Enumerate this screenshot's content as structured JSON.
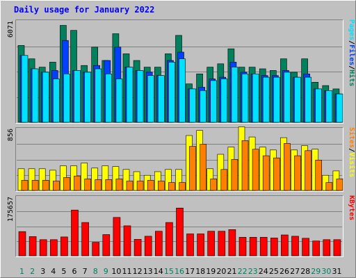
{
  "chart_data": {
    "type": "bar",
    "title": "Daily usage for January 2022",
    "categories": [
      "1",
      "2",
      "3",
      "4",
      "5",
      "6",
      "7",
      "8",
      "9",
      "10",
      "11",
      "12",
      "13",
      "14",
      "15",
      "16",
      "17",
      "18",
      "19",
      "20",
      "21",
      "22",
      "23",
      "24",
      "25",
      "26",
      "27",
      "28",
      "29",
      "30",
      "31"
    ],
    "weekend_days": [
      "1",
      "2",
      "8",
      "9",
      "15",
      "16",
      "22",
      "23",
      "29",
      "30"
    ],
    "panels": [
      {
        "name": "pages-files-hits",
        "max_label": "6071",
        "ymax": 6071,
        "legend": [
          "Pages",
          "/",
          "Files",
          "/",
          "Hits"
        ],
        "series": [
          {
            "name": "Hits",
            "color": "#00805c",
            "values": [
              4600,
              3800,
              3300,
              3600,
              5800,
              5500,
              3400,
              4500,
              3700,
              5300,
              4100,
              3700,
              3300,
              3300,
              4100,
              5200,
              2300,
              2900,
              3300,
              3500,
              4400,
              3300,
              3300,
              3200,
              3100,
              3800,
              3000,
              3800,
              2400,
              2200,
              2000
            ]
          },
          {
            "name": "Files",
            "color": "#0040ff",
            "values": [
              4000,
              3200,
              3000,
              3100,
              4900,
              3100,
              3000,
              3400,
              3700,
              4500,
              3300,
              3100,
              3000,
              2800,
              3700,
              4200,
              2000,
              2100,
              2600,
              2700,
              3600,
              3000,
              2900,
              2800,
              2800,
              3100,
              2700,
              2900,
              2000,
              1900,
              1700
            ]
          },
          {
            "name": "Pages",
            "color": "#00e0ff",
            "values": [
              4000,
              3200,
              3000,
              2600,
              2900,
              3100,
              3000,
              3200,
              2900,
              2600,
              3300,
              3100,
              2800,
              2800,
              3600,
              3800,
              2000,
              1900,
              2500,
              2600,
              3300,
              2900,
              2900,
              2700,
              2700,
              3000,
              2700,
              2700,
              2000,
              1900,
              1700
            ]
          }
        ]
      },
      {
        "name": "visits-sites",
        "max_label": "856",
        "ymax": 856,
        "legend": [
          "Sites",
          "/",
          "Visits"
        ],
        "series": [
          {
            "name": "Visits",
            "color": "#ffff00",
            "values": [
              300,
              300,
              300,
              280,
              340,
              340,
              380,
              310,
              340,
              330,
              290,
              260,
              210,
              260,
              290,
              290,
              760,
              830,
              300,
              500,
              600,
              880,
              740,
              600,
              560,
              730,
              560,
              620,
              570,
              210,
              270
            ]
          },
          {
            "name": "Sites",
            "color": "#ff8000",
            "values": [
              140,
              140,
              140,
              130,
              180,
              200,
              160,
              150,
              150,
              160,
              130,
              130,
              140,
              130,
              110,
              110,
              610,
              640,
              160,
              290,
              430,
              690,
              570,
              480,
              450,
              650,
              480,
              550,
              420,
              110,
              160
            ]
          }
        ]
      },
      {
        "name": "kbytes",
        "max_label": "175657",
        "ymax": 175657,
        "legend": [
          "KBytes"
        ],
        "series": [
          {
            "name": "KBytes",
            "color": "#ff0000",
            "values": [
              72000,
              57000,
              48000,
              48000,
              56000,
              136000,
              99000,
              40000,
              63000,
              114000,
              89000,
              49000,
              58000,
              73000,
              99000,
              142000,
              65000,
              65000,
              73000,
              73000,
              78000,
              55000,
              55000,
              55000,
              53000,
              62000,
              58000,
              52000,
              44000,
              48000,
              48000
            ]
          }
        ]
      }
    ]
  }
}
